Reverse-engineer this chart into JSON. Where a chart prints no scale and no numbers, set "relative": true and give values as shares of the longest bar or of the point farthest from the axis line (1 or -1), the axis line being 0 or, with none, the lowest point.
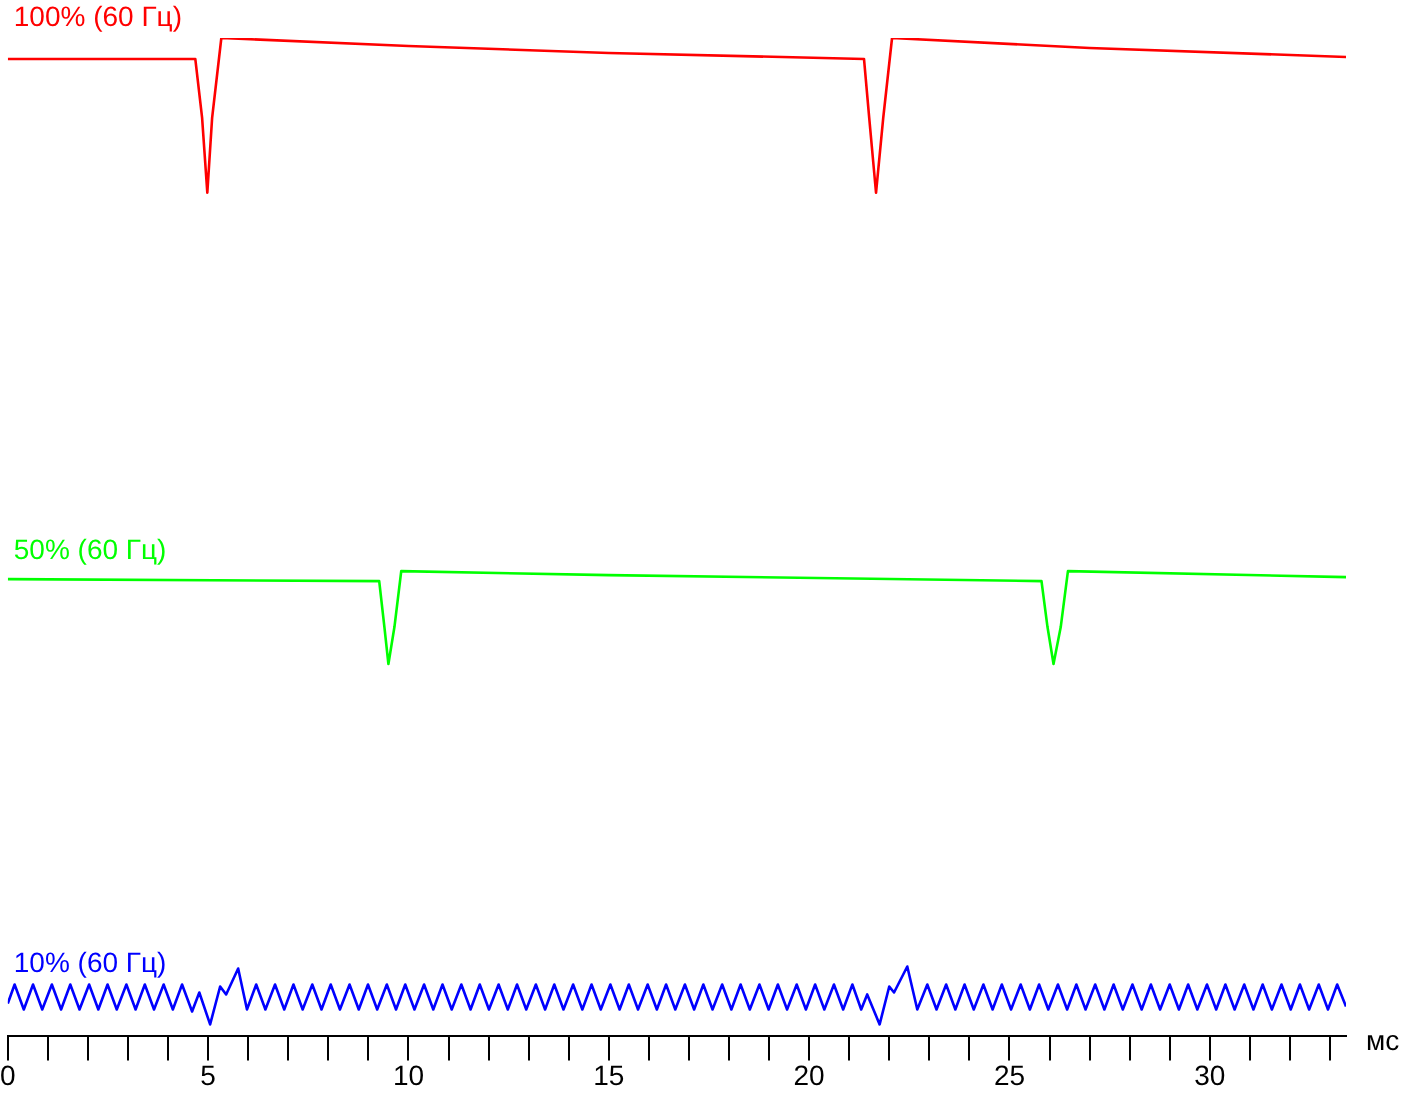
{
  "chart_data": {
    "type": "line",
    "relative": true,
    "xlabel": "мс",
    "marker": "none",
    "xlim": [
      0,
      33.4
    ],
    "xticks": [
      0,
      {
        "value": 1,
        "label": null
      },
      {
        "value": 2,
        "label": null
      },
      {
        "value": 3,
        "label": null
      },
      {
        "value": 4,
        "label": null
      },
      5,
      {
        "value": 6,
        "label": null
      },
      {
        "value": 7,
        "label": null
      },
      {
        "value": 8,
        "label": null
      },
      {
        "value": 9,
        "label": null
      },
      10,
      {
        "value": 11,
        "label": null
      },
      {
        "value": 12,
        "label": null
      },
      {
        "value": 13,
        "label": null
      },
      {
        "value": 14,
        "label": null
      },
      15,
      {
        "value": 16,
        "label": null
      },
      {
        "value": 17,
        "label": null
      },
      {
        "value": 18,
        "label": null
      },
      {
        "value": 19,
        "label": null
      },
      20,
      {
        "value": 21,
        "label": null
      },
      {
        "value": 22,
        "label": null
      },
      {
        "value": 23,
        "label": null
      },
      {
        "value": 24,
        "label": null
      },
      25,
      {
        "value": 26,
        "label": null
      },
      {
        "value": 27,
        "label": null
      },
      {
        "value": 28,
        "label": null
      },
      {
        "value": 29,
        "label": null
      },
      30,
      {
        "value": 31,
        "label": null
      },
      {
        "value": 32,
        "label": null
      },
      {
        "value": 33,
        "label": null
      }
    ],
    "series": [
      {
        "name": "100% (60 Гц)",
        "color": "#ff0000",
        "x": [
          0,
          4.68,
          4.85,
          4.98,
          5.1,
          5.33,
          10,
          15,
          21.37,
          21.5,
          21.67,
          21.85,
          22.07,
          27,
          33.4
        ],
        "values": [
          0.979,
          0.979,
          0.92,
          0.845,
          0.92,
          1.0,
          0.992,
          0.985,
          0.979,
          0.92,
          0.845,
          0.92,
          1.0,
          0.99,
          0.981
        ]
      },
      {
        "name": "50% (60 Гц)",
        "color": "#00ff00",
        "x": [
          0,
          9.27,
          9.4,
          9.5,
          9.65,
          9.82,
          15,
          25.8,
          25.95,
          26.1,
          26.28,
          26.46,
          33.4
        ],
        "values": [
          0.458,
          0.456,
          0.41,
          0.373,
          0.41,
          0.466,
          0.462,
          0.456,
          0.41,
          0.373,
          0.41,
          0.466,
          0.46
        ]
      },
      {
        "name": "10% (60 Гц)",
        "color": "#0000ff",
        "x": [
          0,
          0.17,
          0.4,
          0.63,
          0.86,
          1.1,
          1.33,
          1.56,
          1.79,
          2.03,
          2.26,
          2.49,
          2.72,
          2.96,
          3.19,
          3.42,
          3.65,
          3.89,
          4.12,
          4.35,
          4.6,
          4.78,
          5.05,
          5.3,
          5.45,
          5.75,
          5.97,
          6.2,
          6.43,
          6.67,
          6.9,
          7.13,
          7.36,
          7.6,
          7.83,
          8.06,
          8.29,
          8.53,
          8.76,
          8.99,
          9.22,
          9.46,
          9.69,
          9.92,
          10.15,
          10.39,
          10.62,
          10.85,
          11.08,
          11.32,
          11.55,
          11.78,
          12.01,
          12.25,
          12.48,
          12.71,
          12.94,
          13.18,
          13.41,
          13.64,
          13.87,
          14.11,
          14.34,
          14.57,
          14.8,
          15.04,
          15.27,
          15.5,
          15.73,
          15.97,
          16.2,
          16.43,
          16.66,
          16.9,
          17.13,
          17.36,
          17.59,
          17.83,
          18.06,
          18.29,
          18.52,
          18.76,
          18.99,
          19.22,
          19.45,
          19.69,
          19.92,
          20.15,
          20.38,
          20.62,
          20.85,
          21.08,
          21.3,
          21.45,
          21.76,
          22.0,
          22.12,
          22.45,
          22.7,
          22.95,
          23.18,
          23.42,
          23.65,
          23.88,
          24.11,
          24.35,
          24.58,
          24.81,
          25.04,
          25.28,
          25.51,
          25.74,
          25.97,
          26.21,
          26.44,
          26.67,
          26.9,
          27.14,
          27.37,
          27.6,
          27.83,
          28.07,
          28.3,
          28.53,
          28.76,
          29.0,
          29.23,
          29.46,
          29.69,
          29.93,
          30.16,
          30.39,
          30.62,
          30.86,
          31.09,
          31.32,
          31.55,
          31.79,
          32.02,
          32.25,
          32.48,
          32.72,
          32.95,
          33.18,
          33.4
        ],
        "values": [
          0.033,
          0.052,
          0.027,
          0.052,
          0.027,
          0.052,
          0.027,
          0.052,
          0.027,
          0.052,
          0.027,
          0.052,
          0.027,
          0.052,
          0.027,
          0.052,
          0.027,
          0.052,
          0.027,
          0.052,
          0.025,
          0.044,
          0.012,
          0.05,
          0.042,
          0.068,
          0.027,
          0.052,
          0.027,
          0.052,
          0.027,
          0.052,
          0.027,
          0.052,
          0.027,
          0.052,
          0.027,
          0.052,
          0.027,
          0.052,
          0.027,
          0.052,
          0.027,
          0.052,
          0.027,
          0.052,
          0.027,
          0.052,
          0.027,
          0.052,
          0.027,
          0.052,
          0.027,
          0.052,
          0.027,
          0.052,
          0.027,
          0.052,
          0.027,
          0.052,
          0.027,
          0.052,
          0.027,
          0.052,
          0.027,
          0.052,
          0.027,
          0.052,
          0.027,
          0.052,
          0.027,
          0.052,
          0.027,
          0.052,
          0.027,
          0.052,
          0.027,
          0.052,
          0.027,
          0.052,
          0.027,
          0.052,
          0.027,
          0.052,
          0.027,
          0.052,
          0.027,
          0.052,
          0.027,
          0.052,
          0.027,
          0.052,
          0.027,
          0.042,
          0.012,
          0.05,
          0.044,
          0.07,
          0.027,
          0.052,
          0.027,
          0.052,
          0.027,
          0.052,
          0.027,
          0.052,
          0.027,
          0.052,
          0.027,
          0.052,
          0.027,
          0.052,
          0.027,
          0.052,
          0.027,
          0.052,
          0.027,
          0.052,
          0.027,
          0.052,
          0.027,
          0.052,
          0.027,
          0.052,
          0.027,
          0.052,
          0.027,
          0.052,
          0.027,
          0.052,
          0.027,
          0.052,
          0.027,
          0.052,
          0.027,
          0.052,
          0.027,
          0.052,
          0.027,
          0.052,
          0.027,
          0.052,
          0.027,
          0.052,
          0.03
        ]
      }
    ]
  }
}
